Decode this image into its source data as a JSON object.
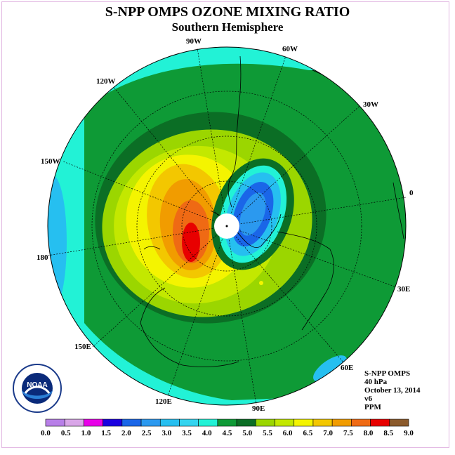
{
  "title": "S-NPP OMPS OZONE MIXING RATIO",
  "subtitle": "Southern Hemisphere",
  "longitude_labels": {
    "w90": "90W",
    "w60": "60W",
    "w120": "120W",
    "w30": "30W",
    "w150": "150W",
    "e0": "0",
    "e180": "180",
    "e30": "30E",
    "e150": "150E",
    "e60": "60E",
    "e120": "120E",
    "e90": "90E"
  },
  "info": {
    "instrument": "S-NPP OMPS",
    "level": "40 hPa",
    "date": "October 13, 2014",
    "version": "v6",
    "units": "PPM"
  },
  "logo": {
    "text": "NOAA"
  },
  "colorbar": {
    "ticks": [
      "0.0",
      "0.5",
      "1.0",
      "1.5",
      "2.0",
      "2.5",
      "3.0",
      "3.5",
      "4.0",
      "4.5",
      "5.0",
      "5.5",
      "6.0",
      "6.5",
      "7.0",
      "7.5",
      "8.0",
      "8.5",
      "9.0"
    ],
    "colors": [
      "#b87fe8",
      "#d9a6e8",
      "#e800e8",
      "#1a00e0",
      "#1a66e8",
      "#2b99ef",
      "#26bff0",
      "#33d4ef",
      "#22f2d6",
      "#0e9a36",
      "#0b6e25",
      "#9bd600",
      "#c3e800",
      "#f4f400",
      "#f3c700",
      "#f19c00",
      "#ef6a14",
      "#e80000",
      "#8b5a2b"
    ]
  }
}
